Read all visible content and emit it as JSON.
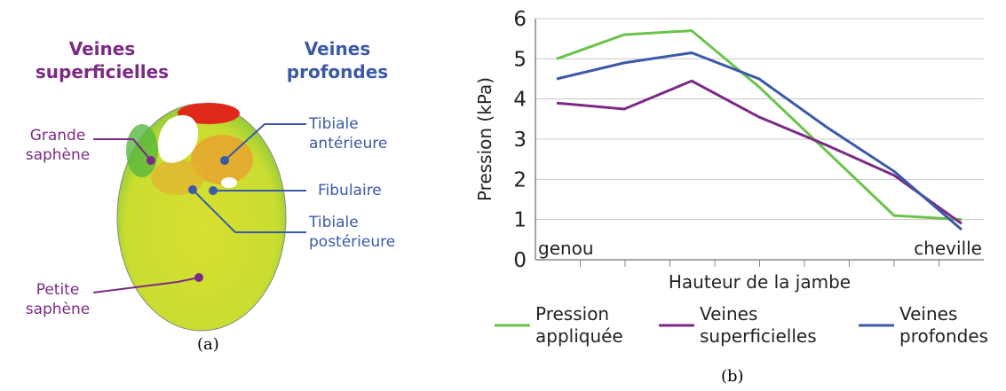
{
  "diagram": {
    "group_superficial": "Veines superficielles",
    "group_deep": "Veines profondes",
    "labels": [
      "Grande saphène",
      "Petite saphène",
      "Tibiale antérieure",
      "Fibulaire",
      "Tibiale postérieure"
    ],
    "caption": "(a)"
  },
  "chart_data": {
    "type": "line",
    "ylabel": "Pression (kPa)",
    "xlabel": "Hauteur de la jambe",
    "annotations": [
      "genou",
      "cheville"
    ],
    "categories": [
      null,
      null,
      null,
      null,
      null,
      null,
      null
    ],
    "series": [
      {
        "name": "Pression appliquée",
        "color": "#6cc24a",
        "values": [
          5.0,
          5.6,
          5.7,
          4.3,
          2.7,
          1.1,
          1.0
        ]
      },
      {
        "name": "Veines superficielles",
        "color": "#7b2a85",
        "values": [
          3.9,
          3.75,
          4.45,
          3.55,
          2.85,
          2.1,
          0.9
        ]
      },
      {
        "name": "Veines profondes",
        "color": "#3a5aa8",
        "values": [
          4.5,
          4.9,
          5.15,
          4.5,
          3.3,
          2.2,
          0.75
        ]
      }
    ],
    "ylim": [
      0,
      6
    ],
    "yticks": [
      0,
      1,
      2,
      3,
      4,
      5,
      6
    ],
    "grid": true,
    "caption": "(b)"
  }
}
